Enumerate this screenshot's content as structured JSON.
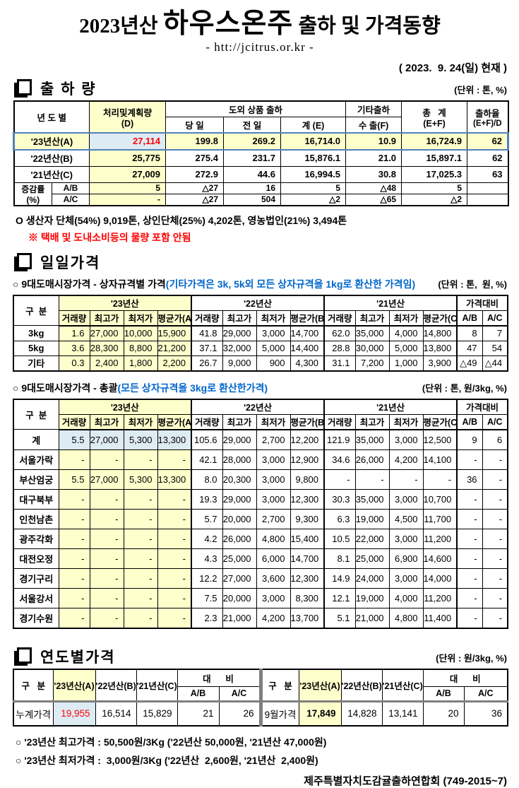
{
  "header": {
    "title_prefix": "2023년산 ",
    "title_main": "하우스온주",
    "title_suffix": " 출하 및 가격동향",
    "url": "- htt://jcitrus.or.kr -",
    "date": "( 2023.  9. 24(일) 현재 )"
  },
  "colors": {
    "highlight_yellow": "#FFFFCC",
    "highlight_blue_bg": "#DDEBF3",
    "highlight_row_border": "#4F81BD",
    "red_text": "#FF0000",
    "blue_text": "#0066CC",
    "divider_gray": "#7F7F7F"
  },
  "icons": {
    "section_bullet": "doc-square-icon"
  },
  "shipment": {
    "title": "출 하 량",
    "unit": "(단위 : 톤, %)",
    "table": {
      "h_year": "년 도 별",
      "h_plan_l1": "처리및계획량",
      "h_plan_l2": "(D)",
      "h_group": "도외 상품 출하",
      "h_today": "당 일",
      "h_prev": "전 일",
      "h_sum": "계 (E)",
      "h_etc": "기타출하",
      "h_export": "수 출(F)",
      "h_total_l1": "총   계",
      "h_total_l2": "(E+F)",
      "h_rate_l1": "출하율",
      "h_rate_l2": "(E+F)/D",
      "rows": [
        {
          "label": "'23년산(A)",
          "highlight": true,
          "values": [
            "27,114",
            "199.8",
            "269.2",
            "16,714.0",
            "10.9",
            "16,724.9",
            "62"
          ]
        },
        {
          "label": "'22년산(B)",
          "highlight": false,
          "values": [
            "25,775",
            "275.4",
            "231.7",
            "15,876.1",
            "21.0",
            "15,897.1",
            "62"
          ]
        },
        {
          "label": "'21년산(C)",
          "highlight": false,
          "values": [
            "27,009",
            "272.9",
            "44.6",
            "16,994.5",
            "30.8",
            "17,025.3",
            "63"
          ]
        }
      ],
      "change_label_top": "증감률",
      "change_label_bottom": "(%)",
      "change_rows": [
        {
          "label": "A/B",
          "values": [
            "5",
            "△27",
            "16",
            "5",
            "△48",
            "5",
            ""
          ]
        },
        {
          "label": "A/C",
          "values": [
            "-",
            "△27",
            "504",
            "△2",
            "△65",
            "△2",
            ""
          ]
        }
      ]
    },
    "notes": {
      "producer": "O 생산자 단체(54%) 9,019톤, 상인단체(25%) 4,202톤, 영농법인(21%) 3,494톤",
      "warning": "※ 택배 및 도내소비등의 물량 포함 안됨"
    }
  },
  "daily": {
    "title": "일일가격",
    "box": {
      "label": "○ 9대도매시장가격 - 상자규격별 가격",
      "label_paren": "(기타가격은 3k, 5k외 모든 상자규격을 1kg로 환산한 가격임)",
      "unit": "(단위 : 톤,  원, %)",
      "table": {
        "label_header": "구  분",
        "groups": [
          "'23년산",
          "'22년산",
          "'21년산",
          "가격대비"
        ],
        "sub": [
          "거래량",
          "최고가",
          "최저가",
          "평균가(A)",
          "거래량",
          "최고가",
          "최저가",
          "평균가(B)",
          "거래량",
          "최고가",
          "최저가",
          "평균가(C)",
          "A/B",
          "A/C"
        ],
        "rows": [
          {
            "label": "3kg",
            "hl": false,
            "values": [
              "1.6",
              "27,000",
              "10,000",
              "15,900",
              "41.8",
              "29,000",
              "3,000",
              "14,700",
              "62.0",
              "35,000",
              "4,000",
              "14,800",
              "8",
              "7"
            ]
          },
          {
            "label": "5kg",
            "hl": false,
            "values": [
              "3.6",
              "28,300",
              "8,800",
              "21,200",
              "37.1",
              "32,000",
              "5,000",
              "14,400",
              "28.8",
              "30,000",
              "5,000",
              "13,800",
              "47",
              "54"
            ]
          },
          {
            "label": "기타",
            "hl": false,
            "values": [
              "0.3",
              "2,400",
              "1,800",
              "2,200",
              "26.7",
              "9,000",
              "900",
              "4,300",
              "31.1",
              "7,200",
              "1,000",
              "3,900",
              "△49",
              "△44"
            ]
          }
        ]
      }
    },
    "total": {
      "label": "○ 9대도매시장가격 - 총괄",
      "label_paren": "(모든 상자규격을 3kg로 환산한가격)",
      "unit": "(단위 : 톤, 원/3kg, %)",
      "table": {
        "label_header": "구  분",
        "groups": [
          "'23년산",
          "'22년산",
          "'21년산",
          "가격대비"
        ],
        "sub": [
          "거래량",
          "최고가",
          "최저가",
          "평균가(A)",
          "거래량",
          "최고가",
          "최저가",
          "평균가(B)",
          "거래량",
          "최고가",
          "최저가",
          "평균가(C)",
          "A/B",
          "A/C"
        ],
        "rows": [
          {
            "label": "계",
            "hl": true,
            "values": [
              "5.5",
              "27,000",
              "5,300",
              "13,300",
              "105.6",
              "29,000",
              "2,700",
              "12,200",
              "121.9",
              "35,000",
              "3,000",
              "12,500",
              "9",
              "6"
            ]
          },
          {
            "label": "서울가락",
            "hl": false,
            "values": [
              "-",
              "-",
              "-",
              "-",
              "42.1",
              "28,000",
              "3,000",
              "12,900",
              "34.6",
              "26,000",
              "4,200",
              "14,100",
              "-",
              "-"
            ]
          },
          {
            "label": "부산엄궁",
            "hl": false,
            "values": [
              "5.5",
              "27,000",
              "5,300",
              "13,300",
              "8.0",
              "20,300",
              "3,000",
              "9,800",
              "-",
              "-",
              "-",
              "-",
              "36",
              "-"
            ]
          },
          {
            "label": "대구북부",
            "hl": false,
            "values": [
              "-",
              "-",
              "-",
              "-",
              "19.3",
              "29,000",
              "3,000",
              "12,300",
              "30.3",
              "35,000",
              "3,000",
              "10,700",
              "-",
              "-"
            ]
          },
          {
            "label": "인천남촌",
            "hl": false,
            "values": [
              "-",
              "-",
              "-",
              "-",
              "5.7",
              "20,000",
              "2,700",
              "9,300",
              "6.3",
              "19,000",
              "4,500",
              "11,700",
              "-",
              "-"
            ]
          },
          {
            "label": "광주각화",
            "hl": false,
            "values": [
              "-",
              "-",
              "-",
              "-",
              "4.2",
              "26,000",
              "4,800",
              "15,400",
              "10.5",
              "22,000",
              "3,000",
              "11,200",
              "-",
              "-"
            ]
          },
          {
            "label": "대전오정",
            "hl": false,
            "values": [
              "-",
              "-",
              "-",
              "-",
              "4.3",
              "25,000",
              "6,000",
              "14,700",
              "8.1",
              "25,000",
              "6,900",
              "14,600",
              "-",
              "-"
            ]
          },
          {
            "label": "경기구리",
            "hl": false,
            "values": [
              "-",
              "-",
              "-",
              "-",
              "12.2",
              "27,000",
              "3,600",
              "12,300",
              "14.9",
              "24,000",
              "3,000",
              "14,000",
              "-",
              "-"
            ]
          },
          {
            "label": "서울강서",
            "hl": false,
            "values": [
              "-",
              "-",
              "-",
              "-",
              "7.5",
              "20,000",
              "3,000",
              "8,300",
              "12.1",
              "19,000",
              "4,000",
              "11,200",
              "-",
              "-"
            ]
          },
          {
            "label": "경기수원",
            "hl": false,
            "values": [
              "-",
              "-",
              "-",
              "-",
              "2.3",
              "21,000",
              "4,200",
              "13,700",
              "5.1",
              "21,000",
              "4,800",
              "11,400",
              "-",
              "-"
            ]
          }
        ]
      }
    }
  },
  "yearly": {
    "title": "연도별가격",
    "unit": "(단위 : 원/3kg, %)",
    "label_header": "구   분",
    "years": [
      "'23년산(A)",
      "'22년산(B)",
      "'21년산(C)"
    ],
    "daebi": "대      비",
    "ab": "A/B",
    "ac": "A/C",
    "left_row": {
      "label": "누계가격",
      "values": [
        "19,955",
        "16,514",
        "15,829",
        "21",
        "26"
      ]
    },
    "right_row": {
      "label": "9월가격",
      "values": [
        "17,849",
        "14,828",
        "13,141",
        "20",
        "36"
      ]
    }
  },
  "footer": {
    "note1": "○ '23년산 최고가격 : 50,500원/3Kg ('22년산 50,000원, '21년산 47,000원)",
    "note2": "○ '23년산 최저가격 :  3,000원/3Kg ('22년산  2,600원, '21년산  2,400원)",
    "org": "제주특별자치도감귤출하연합회 (749-2015~7)"
  }
}
